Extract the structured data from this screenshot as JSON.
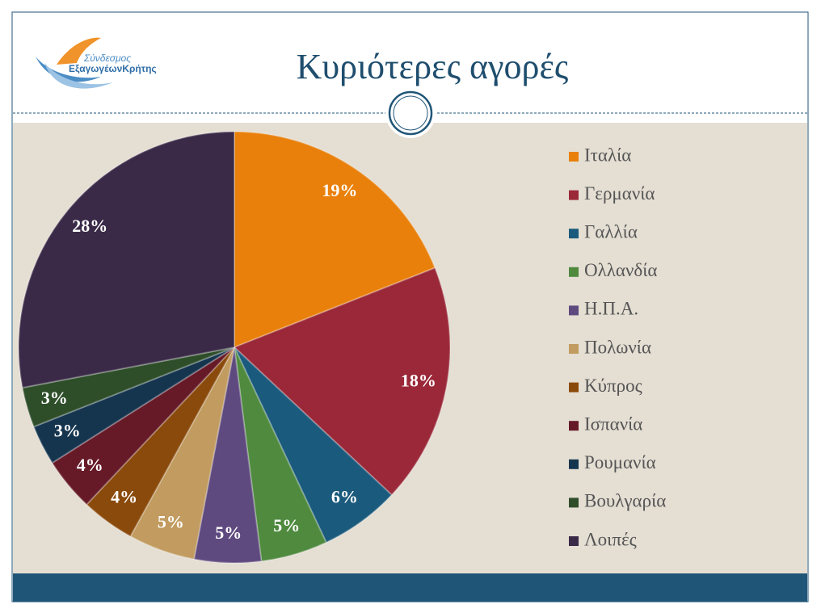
{
  "header": {
    "logo": [
      "Σύνδεσμος",
      "ΕξαγωγέωνΚρήτης"
    ]
  },
  "chart_data": {
    "type": "pie",
    "title": "Κυριότερες αγορές",
    "categories": [
      "Ιταλία",
      "Γερμανία",
      "Γαλλία",
      "Ολλανδία",
      "Η.Π.Α.",
      "Πολωνία",
      "Κύπρος",
      "Ισπανία",
      "Ρουμανία",
      "Βουλγαρία",
      "Λοιπές"
    ],
    "values": [
      19,
      18,
      6,
      5,
      5,
      5,
      4,
      4,
      3,
      3,
      28
    ],
    "value_labels": [
      "19%",
      "18%",
      "6%",
      "5%",
      "5%",
      "5%",
      "4%",
      "4%",
      "3%",
      "3%",
      "28%"
    ],
    "colors": [
      "#e9800b",
      "#9a2838",
      "#1a5a7c",
      "#4f8a3f",
      "#5f4a7f",
      "#c19b5f",
      "#8a4a0b",
      "#661a28",
      "#15354f",
      "#2e4e2a",
      "#3a2a48"
    ]
  }
}
